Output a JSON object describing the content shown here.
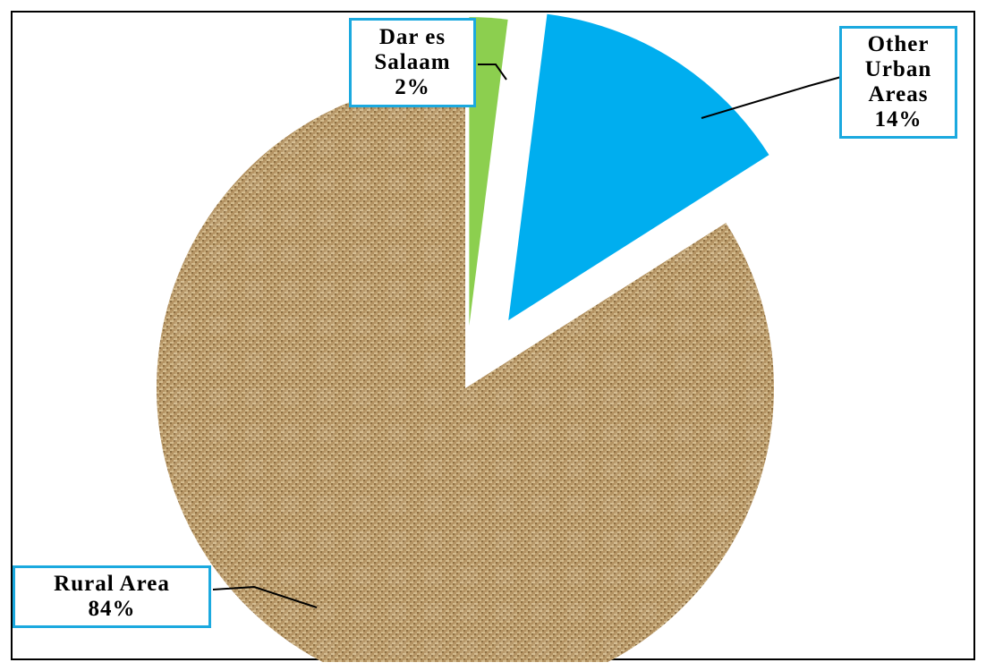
{
  "chart_data": {
    "type": "pie",
    "slices": [
      {
        "label": "Rural Area",
        "value": 84,
        "value_label": "84%",
        "color": "#b89866",
        "exploded": false,
        "label_lines": [
          "Rural Area",
          "84%"
        ]
      },
      {
        "label": "Dar es Salaam",
        "value": 2,
        "value_label": "2%",
        "color": "#8ccf4f",
        "exploded": true,
        "label_lines": [
          "Dar es",
          "Salaam",
          "2%"
        ]
      },
      {
        "label": "Other Urban Areas",
        "value": 14,
        "value_label": "14%",
        "color": "#00aeef",
        "exploded": true,
        "label_lines": [
          "Other",
          "Urban",
          "Areas",
          "14%"
        ]
      }
    ],
    "start_angle_deg": 0,
    "direction": "clockwise",
    "legend": "none",
    "label_border_color": "#1ba9df",
    "texture": "burlap-weave"
  }
}
